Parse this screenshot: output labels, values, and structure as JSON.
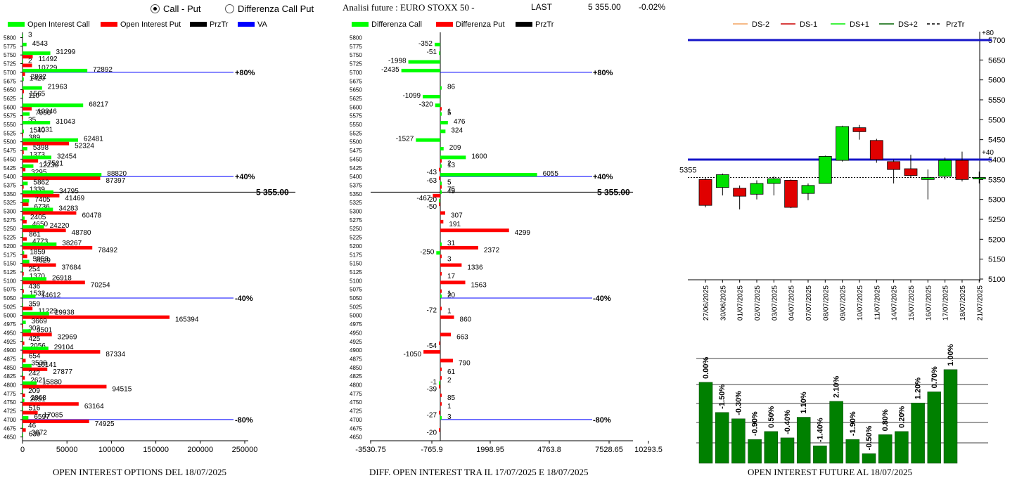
{
  "toolbar": {
    "radio_call_put": "Call - Put",
    "radio_diff": "Differenza Call Put",
    "selected": "Call - Put",
    "title": "Analisi future : EURO STOXX 50 -",
    "last_label": "LAST",
    "last_value": "5 355.00",
    "last_change": "-0.02%"
  },
  "colors": {
    "call": "#00ff00",
    "put": "#ff0000",
    "przTr": "#000000",
    "va": "#0000ff",
    "future_bar": "#008000",
    "ds_minus2": "#f4a460",
    "ds_minus1": "#cc0000",
    "ds_plus1": "#00ee00",
    "ds_plus2": "#006400"
  },
  "captions": {
    "left": "OPEN INTEREST OPTIONS DEL 18/07/2025",
    "middle": "DIFF. OPEN INTEREST TRA IL 17/07/2025 E 18/07/2025",
    "right": "OPEN INTEREST FUTURE AL 18/07/2025"
  },
  "chart_data": [
    {
      "type": "bar",
      "orientation": "horizontal",
      "legend": [
        "Open Interest Call",
        "Open Interest Put",
        "PrzTr",
        "VA"
      ],
      "strikes": [
        5800,
        5775,
        5750,
        5725,
        5700,
        5675,
        5650,
        5625,
        5600,
        5575,
        5550,
        5525,
        5500,
        5475,
        5450,
        5425,
        5400,
        5375,
        5350,
        5325,
        5300,
        5275,
        5250,
        5225,
        5200,
        5175,
        5150,
        5125,
        5100,
        5075,
        5050,
        5025,
        5000,
        4975,
        4950,
        4925,
        4900,
        4875,
        4850,
        4825,
        4800,
        4775,
        4750,
        4725,
        4700,
        4675,
        4650
      ],
      "series": [
        {
          "name": "Open Interest Call",
          "values": [
            3,
            4543,
            31299,
            2,
            72892,
            1420,
            21963,
            110,
            68217,
            7990,
            31043,
            1540,
            62481,
            5398,
            32454,
            12230,
            88820,
            5862,
            34795,
            7405,
            34283,
            2405,
            24220,
            861,
            38267,
            1859,
            7629,
            254,
            26918,
            436,
            14612,
            359,
            29938,
            3669,
            9501,
            425,
            29104,
            654,
            10141,
            242,
            15880,
            209,
            2051,
            516,
            6597,
            46,
            639
          ],
          "labels": [
            "3",
            "4543",
            "31299",
            "2",
            "72892",
            "1420",
            "21963",
            "110",
            "68217",
            "7990",
            "31043",
            "1540",
            "62481",
            "5398",
            "32454",
            "12230",
            "88820",
            "5862",
            "34795",
            "7405",
            "34283",
            "2405",
            "24220",
            "861",
            "38267",
            "1859",
            "7629",
            "254",
            "26918",
            "436",
            "14612",
            "359",
            "29938",
            "3669",
            "9501",
            "425",
            "29104",
            "654",
            "10141",
            "242",
            "15880",
            "209",
            "2051",
            "516",
            "6597",
            "46",
            "639"
          ]
        },
        {
          "name": "Open Interest Put",
          "values": [
            0,
            0,
            11492,
            10729,
            2832,
            0,
            1565,
            0,
            10346,
            35,
            0,
            389,
            52324,
            1373,
            17521,
            3295,
            87397,
            1339,
            41469,
            6736,
            60478,
            4650,
            48780,
            4773,
            78492,
            5253,
            37684,
            1370,
            70254,
            1532,
            0,
            11229,
            165394,
            302,
            32969,
            2056,
            87334,
            3538,
            27877,
            2621,
            94515,
            2868,
            63164,
            17085,
            74925,
            3672,
            0
          ],
          "labels": [
            "",
            "",
            "11492",
            "10729",
            "2832",
            "",
            "1565",
            "",
            "10346",
            "35",
            "",
            "389",
            "52324",
            "1373",
            "17521",
            "3295",
            "87397",
            "1339",
            "41469",
            "6736",
            "60478",
            "4650",
            "48780",
            "4773",
            "78492",
            "5253",
            "37684",
            "1370",
            "70254",
            "1532",
            "",
            "11229",
            "165394",
            "302",
            "32969",
            "2056",
            "87334",
            "3538",
            "27877",
            "2621",
            "94515",
            "2868",
            "63164",
            "17085",
            "74925",
            "3672",
            ""
          ],
          "extra_label": {
            "strike": 5525,
            "text": "1031"
          }
        }
      ],
      "x_ticks": [
        "0",
        "50000",
        "100000",
        "150000",
        "200000",
        "250000"
      ],
      "xlim": [
        0,
        250000
      ],
      "przTr": 5355,
      "przTr_label": "5 355.00",
      "levels": [
        {
          "strike": 5700,
          "label": "+80%"
        },
        {
          "strike": 5400,
          "label": "+40%"
        },
        {
          "strike": 5050,
          "label": "-40%"
        },
        {
          "strike": 4700,
          "label": "-80%"
        }
      ]
    },
    {
      "type": "bar",
      "orientation": "horizontal",
      "legend": [
        "Differenza Call",
        "Differenza Put",
        "PrzTr"
      ],
      "strikes": [
        5800,
        5775,
        5750,
        5725,
        5700,
        5675,
        5650,
        5625,
        5600,
        5575,
        5550,
        5525,
        5500,
        5475,
        5450,
        5425,
        5400,
        5375,
        5350,
        5325,
        5300,
        5275,
        5250,
        5225,
        5200,
        5175,
        5150,
        5125,
        5100,
        5075,
        5050,
        5025,
        5000,
        4975,
        4950,
        4925,
        4900,
        4875,
        4850,
        4825,
        4800,
        4775,
        4750,
        4725,
        4700,
        4675,
        4650
      ],
      "series": [
        {
          "name": "Differenza Call",
          "values": [
            null,
            -352,
            -51,
            -1998,
            -2435,
            null,
            86,
            -1099,
            -320,
            5,
            476,
            324,
            -1527,
            209,
            1600,
            13,
            6055,
            5,
            45,
            -20,
            null,
            null,
            null,
            null,
            31,
            -250,
            null,
            null,
            null,
            null,
            20,
            null,
            null,
            null,
            null,
            null,
            null,
            null,
            null,
            null,
            -1,
            null,
            null,
            null,
            3,
            null,
            null
          ],
          "labels": [
            "",
            "-352",
            "-51",
            "-1998",
            "-2435",
            "",
            "86",
            "-1099",
            "-320",
            "5",
            "476",
            "324",
            "-1527",
            "209",
            "1600",
            "13",
            "6055",
            "5",
            "45",
            "-20",
            "",
            "",
            "",
            "",
            "31",
            "-250",
            "",
            "",
            "",
            "",
            "20",
            "",
            "",
            "",
            "",
            "",
            "",
            "",
            "",
            "",
            "-1",
            "",
            "",
            "",
            "3",
            "",
            ""
          ]
        },
        {
          "name": "Differenza Put",
          "values": [
            null,
            null,
            null,
            null,
            null,
            null,
            null,
            null,
            1,
            null,
            null,
            null,
            null,
            null,
            2,
            -43,
            -63,
            75,
            -467,
            -50,
            307,
            191,
            4299,
            null,
            2372,
            3,
            1336,
            17,
            1563,
            1,
            null,
            1,
            860,
            null,
            663,
            -54,
            -1050,
            790,
            61,
            2,
            -39,
            85,
            1,
            -27,
            null,
            -20,
            null
          ],
          "labels": [
            "",
            "",
            "",
            "",
            "",
            "",
            "",
            "",
            "1",
            "",
            "",
            "",
            "",
            "",
            "2",
            "-43",
            "-63",
            "75",
            "-467",
            "-50",
            "307",
            "191",
            "4299",
            "",
            "2372",
            "3",
            "1336",
            "17",
            "1563",
            "1",
            "",
            "1",
            "860",
            "",
            "663",
            "-54",
            "-1050",
            "790",
            "61",
            "2",
            "-39",
            "85",
            "1",
            "-27",
            "",
            "-20",
            ""
          ],
          "extra_labels": [
            {
              "strike": 5025,
              "text": "-72"
            }
          ]
        }
      ],
      "x_ticks": [
        "-3530.75",
        "-765.9",
        "1998.95",
        "4763.8",
        "7528.65",
        "10293.5"
      ],
      "xlim": [
        -3530.75,
        10293.5
      ],
      "przTr_label": "5 355.00",
      "levels": [
        "+80%",
        "+40%",
        "-40%",
        "-80%"
      ]
    },
    {
      "type": "candlestick",
      "legend": [
        "DS-2",
        "DS-1",
        "DS+1",
        "DS+2",
        "PrzTr"
      ],
      "dates": [
        "27/06/2025",
        "30/06/2025",
        "01/07/2025",
        "02/07/2025",
        "03/07/2025",
        "04/07/2025",
        "07/07/2025",
        "08/07/2025",
        "09/07/2025",
        "10/07/2025",
        "11/07/2025",
        "14/07/2025",
        "15/07/2025",
        "16/07/2025",
        "17/07/2025",
        "18/07/2025",
        "21/07/2025"
      ],
      "open": [
        5350,
        5330,
        5328,
        5313,
        5340,
        5348,
        5315,
        5340,
        5398,
        5480,
        5448,
        5395,
        5377,
        5350,
        5358,
        5398,
        5355
      ],
      "close": [
        5285,
        5362,
        5308,
        5340,
        5352,
        5280,
        5335,
        5408,
        5483,
        5470,
        5400,
        5375,
        5360,
        5355,
        5398,
        5350,
        5355
      ],
      "high": [
        5355,
        5365,
        5335,
        5348,
        5358,
        5350,
        5340,
        5410,
        5485,
        5487,
        5452,
        5400,
        5412,
        5375,
        5405,
        5420,
        5370
      ],
      "low": [
        5280,
        5310,
        5275,
        5300,
        5310,
        5278,
        5298,
        5340,
        5395,
        5450,
        5392,
        5340,
        5355,
        5300,
        5350,
        5345,
        5340
      ],
      "ylim": [
        5100,
        5700
      ],
      "y_ticks": [
        "5700",
        "5650",
        "5600",
        "5550",
        "5500",
        "5450",
        "5400",
        "5350",
        "5300",
        "5250",
        "5200",
        "5150",
        "5100"
      ],
      "levels": [
        {
          "value": 5700,
          "label": "+80"
        },
        {
          "value": 5400,
          "label": "+40"
        }
      ],
      "przTr": 5355,
      "przTr_label": "5355"
    },
    {
      "type": "bar",
      "title": "",
      "values": [
        2.55,
        1.6,
        1.4,
        0.75,
        1.0,
        0.8,
        1.45,
        0.55,
        1.95,
        0.75,
        0.3,
        0.9,
        1.0,
        1.9,
        2.25,
        2.95
      ],
      "labels": [
        "0.00%",
        "-1.50%",
        "-0.30%",
        "-0.90%",
        "0.50%",
        "-0.40%",
        "1.10%",
        "-1.40%",
        "2.10%",
        "-1.90%",
        "-0.50%",
        "0.80%",
        "0.20%",
        "1.20%",
        "0.70%",
        "1.00%"
      ],
      "ylim": [
        0,
        3.3
      ]
    }
  ]
}
